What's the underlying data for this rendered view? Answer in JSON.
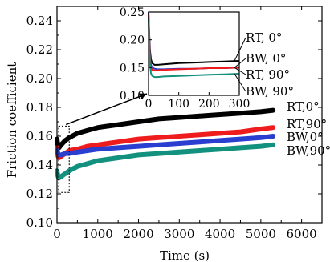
{
  "chart_data": [
    {
      "type": "line",
      "xlabel": "Time (s)",
      "ylabel": "Friction coefficient",
      "xlim": [
        0,
        6500
      ],
      "ylim": [
        0.1,
        0.25
      ],
      "xticks": [
        "0",
        "1000",
        "2000",
        "3000",
        "4000",
        "5000",
        "6000"
      ],
      "yticks": [
        "0.10",
        "0.12",
        "0.14",
        "0.16",
        "0.18",
        "0.20",
        "0.22",
        "0.24"
      ],
      "grid": false,
      "legend_placement": "right-end-labels",
      "series": [
        {
          "name": "RT,0°",
          "color": "#000000",
          "x": [
            0,
            25,
            50,
            100,
            200,
            300,
            500,
            750,
            1000,
            1500,
            2000,
            2500,
            3000,
            3500,
            4000,
            4500,
            5000,
            5300
          ],
          "y": [
            0.158,
            0.153,
            0.152,
            0.154,
            0.157,
            0.159,
            0.162,
            0.164,
            0.166,
            0.168,
            0.17,
            0.172,
            0.173,
            0.174,
            0.175,
            0.176,
            0.177,
            0.178
          ]
        },
        {
          "name": "RT,90°",
          "color": "#ee1c1c",
          "x": [
            0,
            25,
            50,
            100,
            200,
            300,
            500,
            750,
            1000,
            1500,
            2000,
            2500,
            3000,
            3500,
            4000,
            4500,
            5000,
            5300
          ],
          "y": [
            0.152,
            0.146,
            0.145,
            0.146,
            0.148,
            0.15,
            0.151,
            0.153,
            0.154,
            0.156,
            0.158,
            0.159,
            0.16,
            0.161,
            0.162,
            0.163,
            0.165,
            0.166
          ]
        },
        {
          "name": "BW,0°",
          "color": "#2a3fd0",
          "x": [
            0,
            25,
            50,
            100,
            200,
            300,
            500,
            750,
            1000,
            1500,
            2000,
            2500,
            3000,
            3500,
            4000,
            4500,
            5000,
            5300
          ],
          "y": [
            0.15,
            0.148,
            0.147,
            0.147,
            0.148,
            0.148,
            0.149,
            0.15,
            0.151,
            0.152,
            0.153,
            0.154,
            0.155,
            0.156,
            0.157,
            0.158,
            0.159,
            0.16
          ]
        },
        {
          "name": "BW,90°",
          "color": "#13917f",
          "x": [
            0,
            25,
            50,
            100,
            200,
            300,
            500,
            750,
            1000,
            1500,
            2000,
            2500,
            3000,
            3500,
            4000,
            4500,
            5000,
            5300
          ],
          "y": [
            0.136,
            0.132,
            0.131,
            0.132,
            0.134,
            0.136,
            0.139,
            0.141,
            0.143,
            0.145,
            0.147,
            0.148,
            0.149,
            0.15,
            0.151,
            0.152,
            0.153,
            0.154
          ]
        }
      ]
    },
    {
      "type": "line",
      "xlim": [
        0,
        300
      ],
      "ylim": [
        0.1,
        0.25
      ],
      "xticks": [
        "0",
        "100",
        "200",
        "300"
      ],
      "yticks": [
        "0.10",
        "0.15",
        "0.20",
        "0.25"
      ],
      "legend_placement": "right-with-leader-lines",
      "series": [
        {
          "name": "RT, 0°",
          "color": "#000000",
          "x": [
            0,
            2,
            5,
            8,
            12,
            20,
            30,
            50,
            100,
            150,
            200,
            250,
            300
          ],
          "y": [
            0.25,
            0.215,
            0.18,
            0.165,
            0.158,
            0.155,
            0.155,
            0.156,
            0.158,
            0.159,
            0.16,
            0.161,
            0.162
          ]
        },
        {
          "name": "BW, 0°",
          "color": "#2a3fd0",
          "x": [
            0,
            2,
            5,
            8,
            12,
            20,
            30,
            50,
            100,
            150,
            200,
            250,
            300
          ],
          "y": [
            0.25,
            0.21,
            0.17,
            0.155,
            0.15,
            0.148,
            0.147,
            0.147,
            0.148,
            0.148,
            0.149,
            0.149,
            0.15
          ]
        },
        {
          "name": "RT, 90°",
          "color": "#ee1c1c",
          "x": [
            0,
            2,
            5,
            8,
            12,
            20,
            30,
            50,
            100,
            150,
            200,
            250,
            300
          ],
          "y": [
            0.245,
            0.205,
            0.165,
            0.15,
            0.146,
            0.145,
            0.145,
            0.146,
            0.147,
            0.148,
            0.149,
            0.149,
            0.15
          ]
        },
        {
          "name": "BW, 90°",
          "color": "#13917f",
          "x": [
            0,
            2,
            5,
            8,
            12,
            20,
            30,
            50,
            100,
            150,
            200,
            250,
            300
          ],
          "y": [
            0.24,
            0.195,
            0.155,
            0.14,
            0.135,
            0.133,
            0.133,
            0.134,
            0.135,
            0.136,
            0.137,
            0.138,
            0.139
          ]
        }
      ]
    }
  ]
}
